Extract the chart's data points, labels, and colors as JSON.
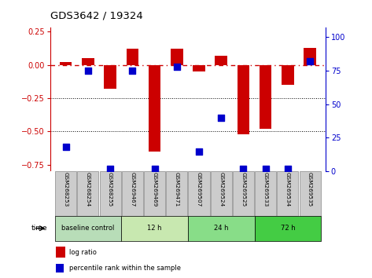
{
  "title": "GDS3642 / 19324",
  "samples": [
    "GSM268253",
    "GSM268254",
    "GSM268255",
    "GSM269467",
    "GSM269469",
    "GSM269471",
    "GSM269507",
    "GSM269524",
    "GSM269525",
    "GSM269533",
    "GSM269534",
    "GSM269535"
  ],
  "log_ratio": [
    0.02,
    0.05,
    -0.18,
    0.12,
    -0.65,
    0.12,
    -0.05,
    0.07,
    -0.52,
    -0.48,
    -0.15,
    0.13
  ],
  "percentile_rank": [
    18,
    75,
    2,
    75,
    2,
    78,
    15,
    40,
    2,
    2,
    2,
    82
  ],
  "bar_color": "#cc0000",
  "dot_color": "#0000cc",
  "zero_line_color": "#cc0000",
  "hline_color": "#000000",
  "ylim_left": [
    -0.8,
    0.28
  ],
  "ylim_right": [
    0,
    107
  ],
  "left_yticks": [
    0.25,
    0.0,
    -0.25,
    -0.5,
    -0.75
  ],
  "right_yticks": [
    100,
    75,
    50,
    25,
    0
  ],
  "dotted_lines": [
    -0.25,
    -0.5
  ],
  "groups": [
    {
      "label": "baseline control",
      "start": 0,
      "end": 3,
      "color": "#b8ddb8"
    },
    {
      "label": "12 h",
      "start": 3,
      "end": 6,
      "color": "#c8e8b0"
    },
    {
      "label": "24 h",
      "start": 6,
      "end": 9,
      "color": "#88dd88"
    },
    {
      "label": "72 h",
      "start": 9,
      "end": 12,
      "color": "#44cc44"
    }
  ],
  "legend_log_ratio": "log ratio",
  "legend_percentile": "percentile rank within the sample",
  "time_label": "time",
  "bar_width": 0.55,
  "dot_size": 40,
  "label_box_color": "#cccccc",
  "spine_color": "#888888"
}
